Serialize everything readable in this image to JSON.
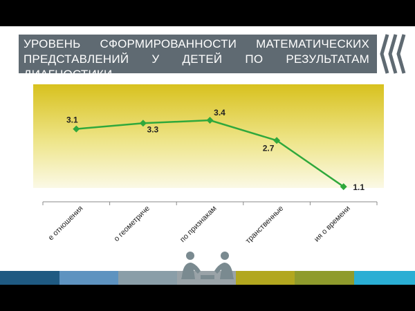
{
  "chart_data": {
    "type": "line",
    "title": "УРОВЕНЬ СФОРМИРОВАННОСТИ МАТЕМАТИЧЕСКИХ ПРЕДСТАВЛЕНИЙ У ДЕТЕЙ ПО РЕЗУЛЬТАТАМ ДИАГНОСТИКИ",
    "categories": [
      "е отношения",
      "о геометриче",
      "по признакам",
      "транственные",
      "ия о времени"
    ],
    "values": [
      3.1,
      3.3,
      3.4,
      2.7,
      1.1
    ],
    "color": "#2fa83c",
    "ylim": [
      0,
      4
    ]
  }
}
